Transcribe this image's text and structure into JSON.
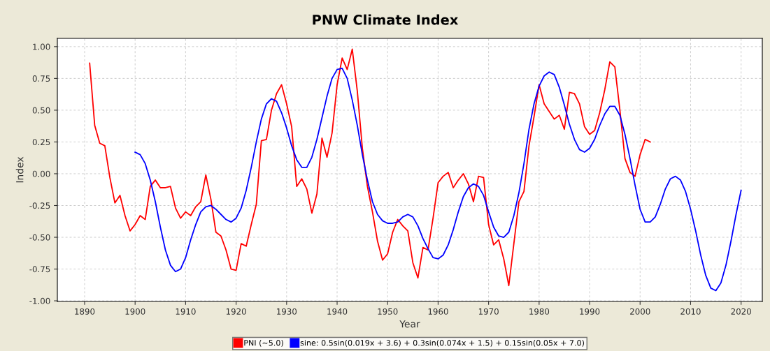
{
  "chart_data": {
    "type": "line",
    "title": "PNW Climate Index",
    "xlabel": "Year",
    "ylabel": "Index",
    "xlim": [
      1884.6,
      2024.2
    ],
    "xticks": [
      1890,
      1900,
      1910,
      1920,
      1930,
      1940,
      1950,
      1960,
      1970,
      1980,
      1990,
      2000,
      2010,
      2020
    ],
    "ylim": [
      -1.005,
      1.065
    ],
    "yticks": [
      {
        "value": -1,
        "label": "-1.00"
      },
      {
        "value": -0.75,
        "label": "-0.75"
      },
      {
        "value": -0.5,
        "label": "-0.50"
      },
      {
        "value": -0.25,
        "label": "-0.25"
      },
      {
        "value": 0,
        "label": "0.00"
      },
      {
        "value": 0.25,
        "label": "0.25"
      },
      {
        "value": 0.5,
        "label": "0.50"
      },
      {
        "value": 0.75,
        "label": "0.75"
      },
      {
        "value": 1,
        "label": "1.00"
      }
    ],
    "grid": true,
    "legend": "bottom",
    "marker": "none",
    "line_style": "solid",
    "series": [
      {
        "name": "PNI (~5.0)",
        "color": "#ff0000",
        "x": [
          1891,
          1892,
          1893,
          1894,
          1895,
          1896,
          1897,
          1898,
          1899,
          1900,
          1901,
          1902,
          1903,
          1904,
          1905,
          1906,
          1907,
          1908,
          1909,
          1910,
          1911,
          1912,
          1913,
          1914,
          1915,
          1916,
          1917,
          1918,
          1919,
          1920,
          1921,
          1922,
          1923,
          1924,
          1925,
          1926,
          1927,
          1928,
          1929,
          1930,
          1931,
          1932,
          1933,
          1934,
          1935,
          1936,
          1937,
          1938,
          1939,
          1940,
          1941,
          1942,
          1943,
          1944,
          1945,
          1946,
          1947,
          1948,
          1949,
          1950,
          1951,
          1952,
          1953,
          1954,
          1955,
          1956,
          1957,
          1958,
          1959,
          1960,
          1961,
          1962,
          1963,
          1964,
          1965,
          1966,
          1967,
          1968,
          1969,
          1970,
          1971,
          1972,
          1973,
          1974,
          1975,
          1976,
          1977,
          1978,
          1979,
          1980,
          1981,
          1982,
          1983,
          1984,
          1985,
          1986,
          1987,
          1988,
          1989,
          1990,
          1991,
          1992,
          1993,
          1994,
          1995,
          1996,
          1997,
          1998,
          1999,
          2000,
          2001,
          2002
        ],
        "values": [
          0.87,
          0.38,
          0.24,
          0.22,
          -0.03,
          -0.23,
          -0.17,
          -0.33,
          -0.45,
          -0.4,
          -0.33,
          -0.36,
          -0.1,
          -0.05,
          -0.11,
          -0.11,
          -0.1,
          -0.27,
          -0.35,
          -0.3,
          -0.33,
          -0.26,
          -0.22,
          -0.01,
          -0.2,
          -0.46,
          -0.49,
          -0.6,
          -0.75,
          -0.76,
          -0.55,
          -0.57,
          -0.4,
          -0.24,
          0.26,
          0.27,
          0.5,
          0.63,
          0.7,
          0.55,
          0.37,
          -0.1,
          -0.04,
          -0.12,
          -0.31,
          -0.16,
          0.28,
          0.13,
          0.32,
          0.7,
          0.91,
          0.82,
          0.98,
          0.65,
          0.2,
          -0.1,
          -0.3,
          -0.53,
          -0.68,
          -0.63,
          -0.46,
          -0.36,
          -0.41,
          -0.45,
          -0.7,
          -0.82,
          -0.58,
          -0.6,
          -0.35,
          -0.07,
          -0.02,
          0.01,
          -0.11,
          -0.05,
          0.0,
          -0.08,
          -0.22,
          -0.02,
          -0.03,
          -0.4,
          -0.56,
          -0.52,
          -0.67,
          -0.88,
          -0.55,
          -0.22,
          -0.14,
          0.22,
          0.45,
          0.7,
          0.55,
          0.49,
          0.43,
          0.46,
          0.35,
          0.64,
          0.63,
          0.55,
          0.37,
          0.31,
          0.34,
          0.48,
          0.66,
          0.88,
          0.84,
          0.5,
          0.12,
          0.01,
          -0.02,
          0.15,
          0.27,
          0.25
        ]
      },
      {
        "name": "sine: 0.5sin(0.019x + 3.6) + 0.3sin(0.074x + 1.5) + 0.15sin(0.05x + 7.0)",
        "color": "#0000ff",
        "x": [
          1900,
          1901,
          1902,
          1903,
          1904,
          1905,
          1906,
          1907,
          1908,
          1909,
          1910,
          1911,
          1912,
          1913,
          1914,
          1915,
          1916,
          1917,
          1918,
          1919,
          1920,
          1921,
          1922,
          1923,
          1924,
          1925,
          1926,
          1927,
          1928,
          1929,
          1930,
          1931,
          1932,
          1933,
          1934,
          1935,
          1936,
          1937,
          1938,
          1939,
          1940,
          1941,
          1942,
          1943,
          1944,
          1945,
          1946,
          1947,
          1948,
          1949,
          1950,
          1951,
          1952,
          1953,
          1954,
          1955,
          1956,
          1957,
          1958,
          1959,
          1960,
          1961,
          1962,
          1963,
          1964,
          1965,
          1966,
          1967,
          1968,
          1969,
          1970,
          1971,
          1972,
          1973,
          1974,
          1975,
          1976,
          1977,
          1978,
          1979,
          1980,
          1981,
          1982,
          1983,
          1984,
          1985,
          1986,
          1987,
          1988,
          1989,
          1990,
          1991,
          1992,
          1993,
          1994,
          1995,
          1996,
          1997,
          1998,
          1999,
          2000,
          2001,
          2002,
          2003,
          2004,
          2005,
          2006,
          2007,
          2008,
          2009,
          2010,
          2011,
          2012,
          2013,
          2014,
          2015,
          2016,
          2017,
          2018,
          2019,
          2020
        ],
        "values": [
          0.17,
          0.15,
          0.08,
          -0.05,
          -0.22,
          -0.42,
          -0.6,
          -0.72,
          -0.77,
          -0.75,
          -0.66,
          -0.52,
          -0.4,
          -0.3,
          -0.26,
          -0.25,
          -0.28,
          -0.32,
          -0.36,
          -0.38,
          -0.35,
          -0.27,
          -0.13,
          0.05,
          0.25,
          0.43,
          0.55,
          0.59,
          0.57,
          0.48,
          0.36,
          0.22,
          0.11,
          0.05,
          0.05,
          0.13,
          0.27,
          0.44,
          0.61,
          0.75,
          0.82,
          0.83,
          0.75,
          0.58,
          0.38,
          0.15,
          -0.05,
          -0.22,
          -0.32,
          -0.37,
          -0.39,
          -0.39,
          -0.38,
          -0.34,
          -0.32,
          -0.34,
          -0.41,
          -0.51,
          -0.59,
          -0.66,
          -0.67,
          -0.64,
          -0.56,
          -0.44,
          -0.3,
          -0.18,
          -0.11,
          -0.08,
          -0.1,
          -0.17,
          -0.3,
          -0.42,
          -0.49,
          -0.5,
          -0.46,
          -0.33,
          -0.15,
          0.08,
          0.35,
          0.55,
          0.69,
          0.77,
          0.8,
          0.78,
          0.68,
          0.54,
          0.39,
          0.27,
          0.19,
          0.17,
          0.2,
          0.27,
          0.38,
          0.47,
          0.53,
          0.53,
          0.46,
          0.31,
          0.12,
          -0.09,
          -0.28,
          -0.38,
          -0.38,
          -0.34,
          -0.24,
          -0.12,
          -0.04,
          -0.02,
          -0.05,
          -0.14,
          -0.28,
          -0.45,
          -0.64,
          -0.8,
          -0.9,
          -0.92,
          -0.86,
          -0.72,
          -0.53,
          -0.32,
          -0.13
        ]
      }
    ]
  }
}
